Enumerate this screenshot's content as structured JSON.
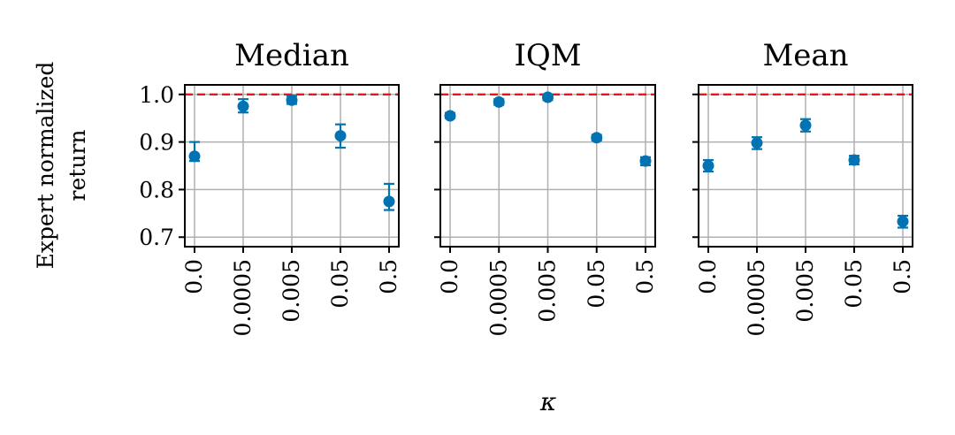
{
  "chart_data": {
    "type": "scatter",
    "ylabel": [
      "Expert normalized",
      "return"
    ],
    "xlabel": "κ",
    "categories": [
      "0.0",
      "0.0005",
      "0.005",
      "0.05",
      "0.5"
    ],
    "ylim": [
      0.68,
      1.02
    ],
    "yticks": [
      0.7,
      0.8,
      0.9,
      1.0
    ],
    "yticklabels": [
      "0.7",
      "0.8",
      "0.9",
      "1.0"
    ],
    "reference_line": {
      "value": 1.0,
      "color": "#e8141c",
      "style": "dashed"
    },
    "grid": true,
    "marker_color": "#0173b2",
    "grid_color": "#b0b0b0",
    "panels": [
      {
        "title": "Median",
        "values": [
          0.87,
          0.975,
          0.988,
          0.913,
          0.775
        ],
        "err_low": [
          0.86,
          0.962,
          0.98,
          0.888,
          0.757
        ],
        "err_high": [
          0.9,
          0.99,
          0.997,
          0.937,
          0.812
        ]
      },
      {
        "title": "IQM",
        "values": [
          0.955,
          0.984,
          0.994,
          0.909,
          0.86
        ],
        "err_low": [
          0.95,
          0.978,
          0.988,
          0.903,
          0.851
        ],
        "err_high": [
          0.961,
          0.99,
          1.0,
          0.915,
          0.868
        ]
      },
      {
        "title": "Mean",
        "values": [
          0.85,
          0.898,
          0.935,
          0.862,
          0.733
        ],
        "err_low": [
          0.838,
          0.885,
          0.922,
          0.853,
          0.72
        ],
        "err_high": [
          0.862,
          0.91,
          0.948,
          0.871,
          0.745
        ]
      }
    ]
  }
}
